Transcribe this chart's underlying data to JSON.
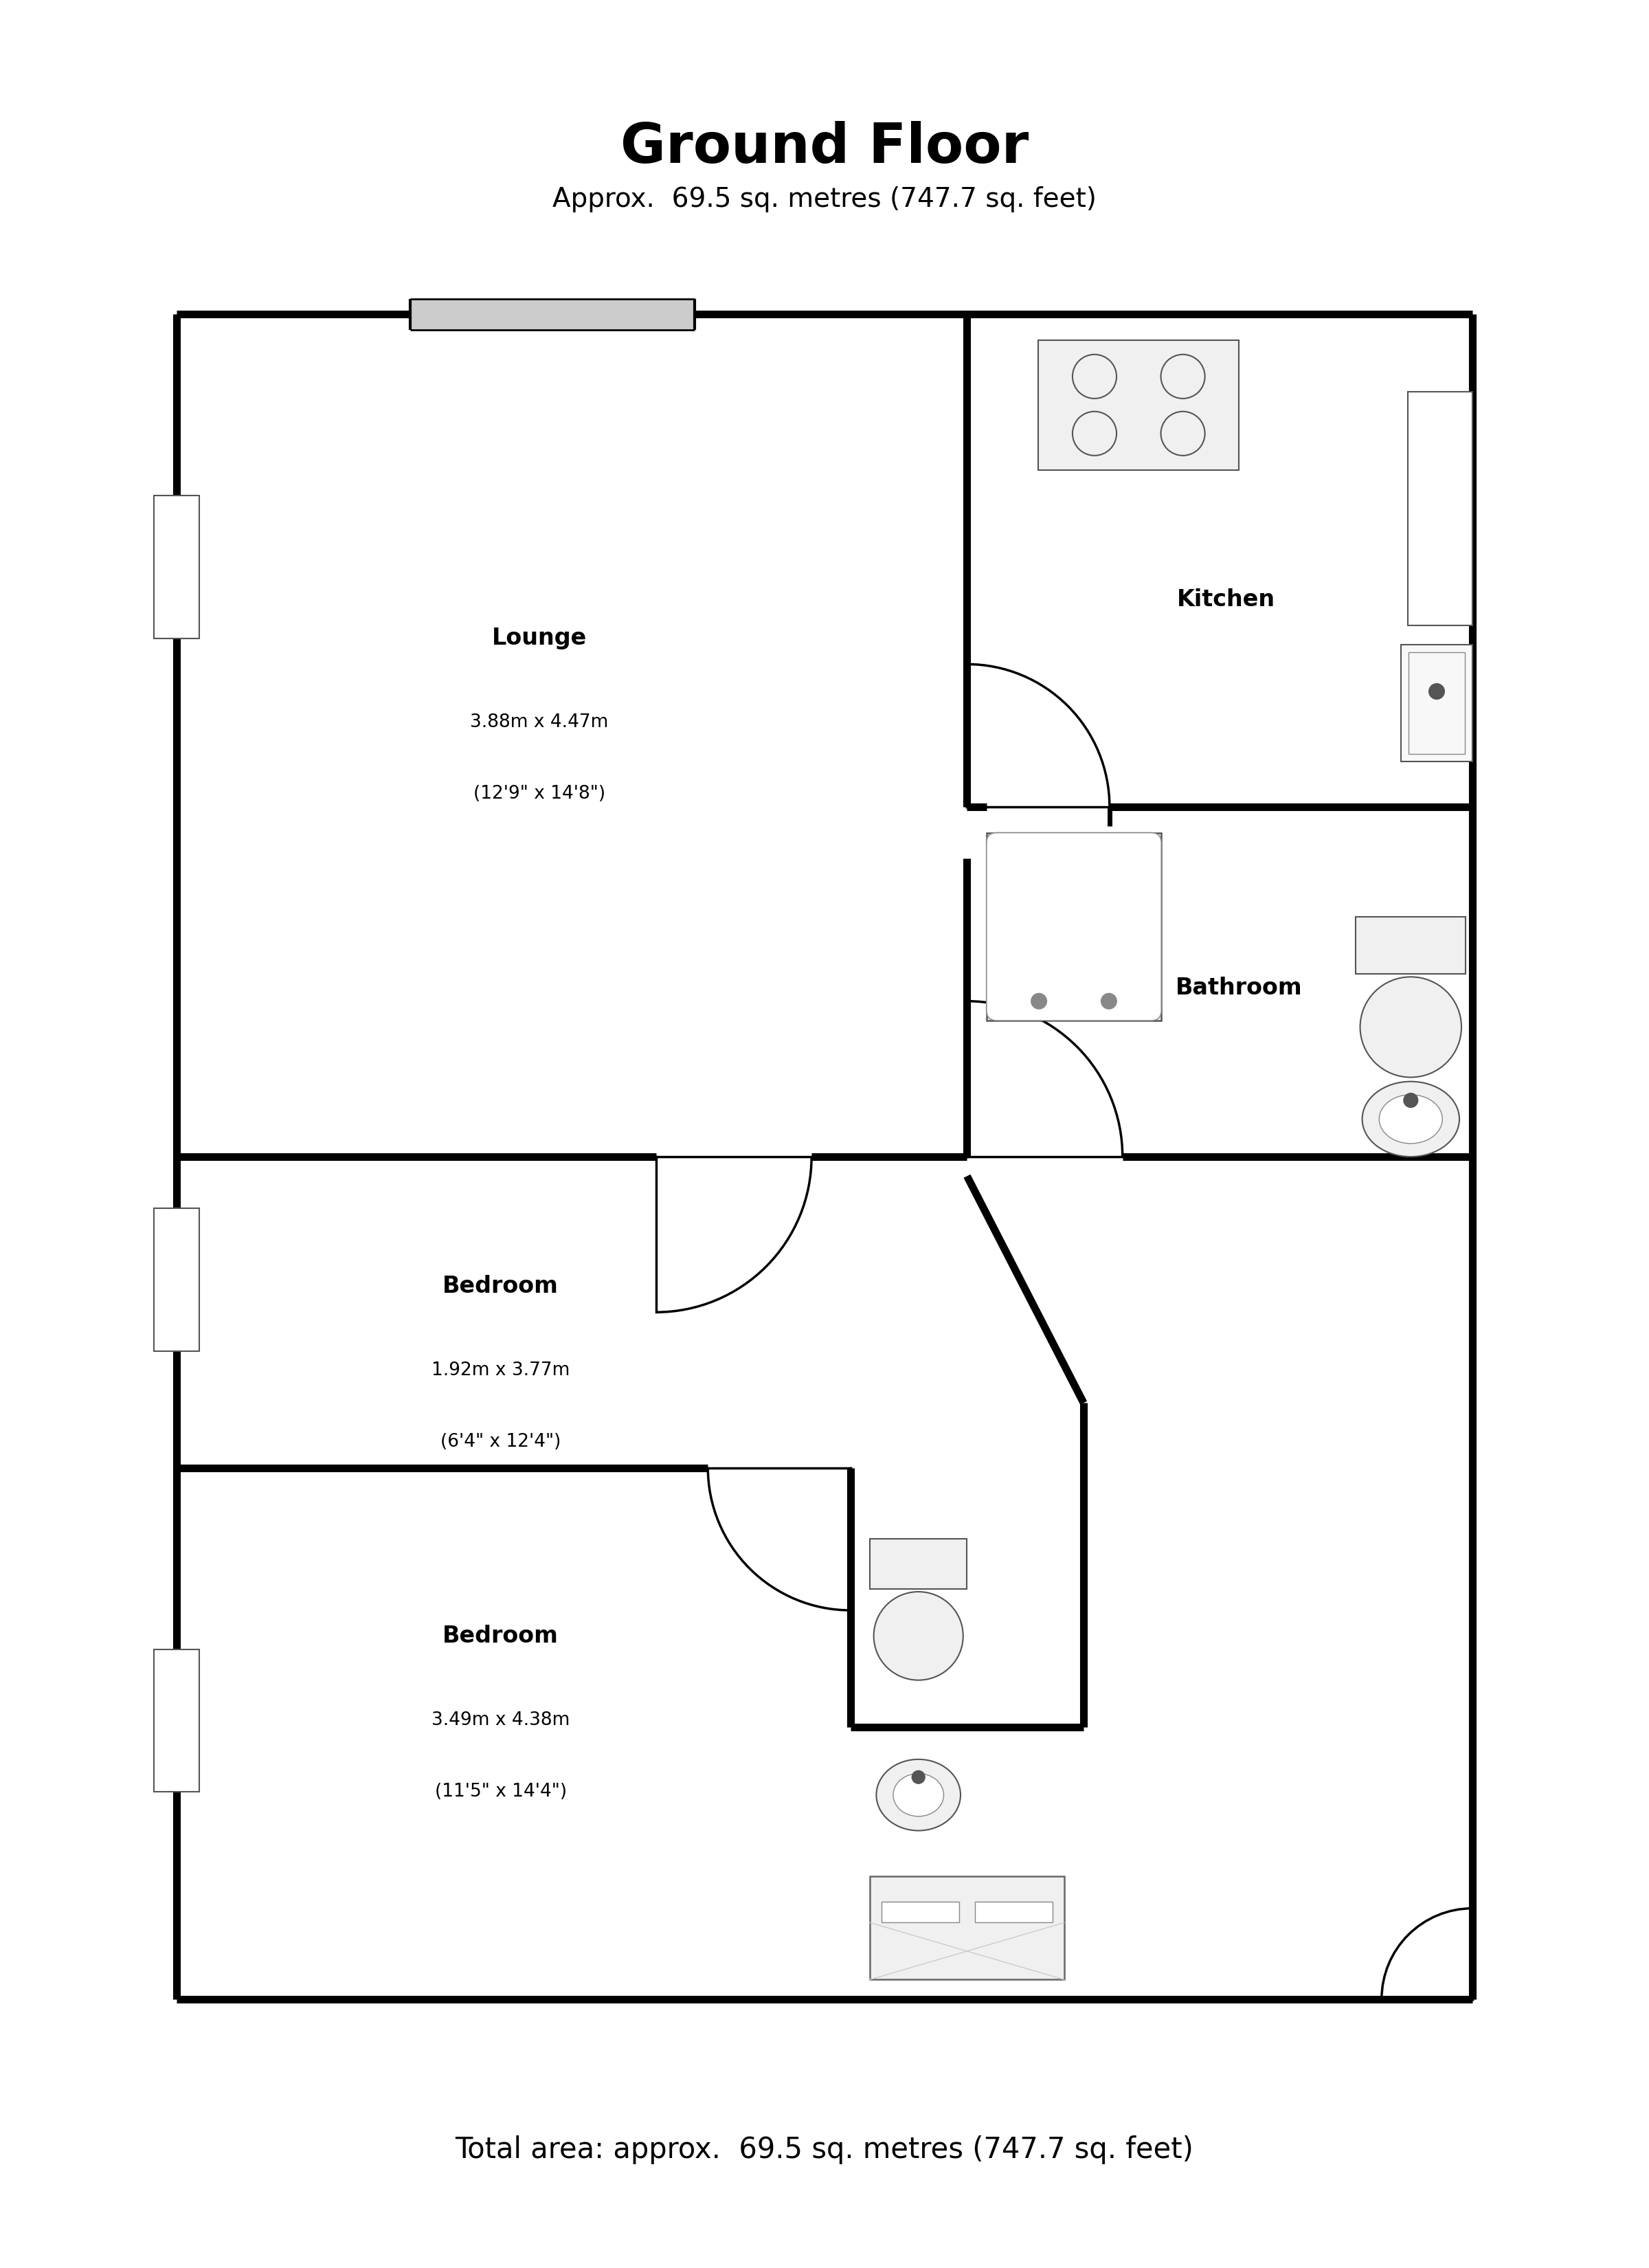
{
  "title": "Ground Floor",
  "subtitle": "Approx.  69.5 sq. metres (747.7 sq. feet)",
  "footer": "Total area: approx.  69.5 sq. metres (747.7 sq. feet)",
  "bg_color": "#ffffff",
  "wall_color": "#000000",
  "rooms": [
    {
      "name": "Lounge",
      "line1": "3.88m x 4.47m",
      "line2": "(12'9\" x 14'8\")"
    },
    {
      "name": "Kitchen",
      "line1": null,
      "line2": null
    },
    {
      "name": "Bathroom",
      "line1": null,
      "line2": null
    },
    {
      "name": "Bedroom",
      "line1": "1.92m x 3.77m",
      "line2": "(6'4\" x 12'4\")"
    },
    {
      "name": "Bedroom",
      "line1": "3.49m x 4.38m",
      "line2": "(11'5\" x 14'4\")"
    }
  ],
  "title_fs": 58,
  "subtitle_fs": 28,
  "footer_fs": 30,
  "label_fs": 24,
  "dim_fs": 19
}
